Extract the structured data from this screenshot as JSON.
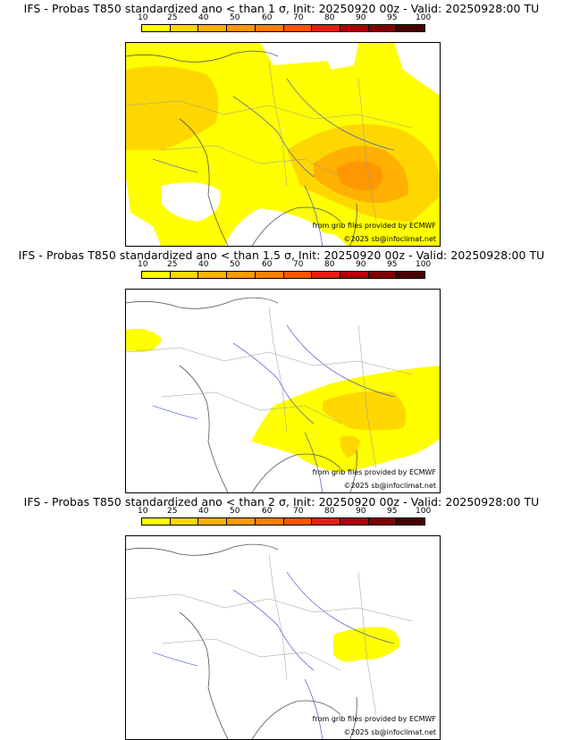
{
  "colorbar": {
    "ticks": [
      "10",
      "25",
      "40",
      "50",
      "60",
      "70",
      "80",
      "90",
      "95",
      "100"
    ],
    "colors": [
      "#ffff00",
      "#ffd700",
      "#ffb000",
      "#ff9800",
      "#ff7e00",
      "#ff5500",
      "#e02010",
      "#b00008",
      "#800000",
      "#4a0000"
    ]
  },
  "panels": [
    {
      "title": "IFS - Probas T850  standardized ano < than 1 σ, Init: 20250920 00z - Valid: 20250928:00 TU",
      "threshold": "1 σ",
      "credit_source": "from grib files provided by ECMWF",
      "credit_copyright": "©2025 sb@infoclimat.net"
    },
    {
      "title": "IFS - Probas T850  standardized ano < than 1.5 σ, Init: 20250920 00z - Valid: 20250928:00 TU",
      "threshold": "1.5 σ",
      "credit_source": "from grib files provided by ECMWF",
      "credit_copyright": "©2025 sb@infoclimat.net"
    },
    {
      "title": "IFS - Probas T850  standardized ano < than 2 σ, Init: 20250920 00z - Valid: 20250928:00 TU",
      "threshold": "2 σ",
      "credit_source": "from grib files provided by ECMWF",
      "credit_copyright": "©2025 sb@infoclimat.net"
    }
  ]
}
